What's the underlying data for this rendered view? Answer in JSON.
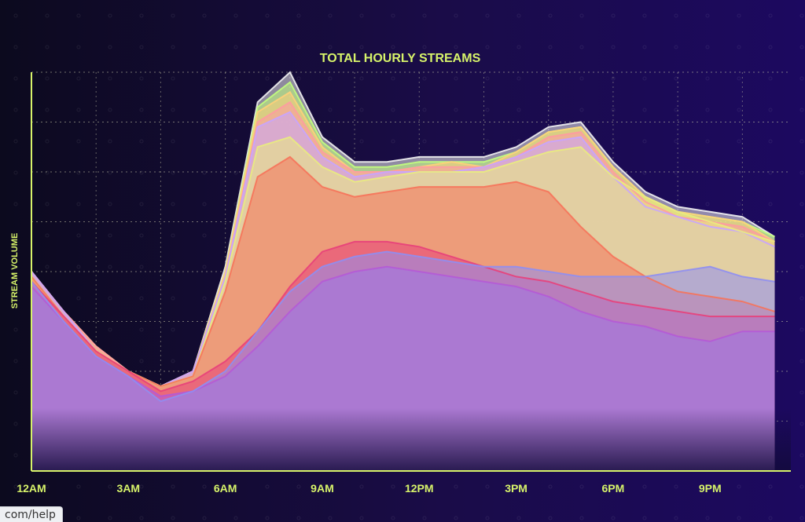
{
  "chart_data": {
    "type": "area",
    "title": "TOTAL HOURLY STREAMS",
    "xlabel": "",
    "ylabel": "STREAM VOLUME",
    "x": [
      0,
      1,
      2,
      3,
      4,
      5,
      6,
      7,
      8,
      9,
      10,
      11,
      12,
      13,
      14,
      15,
      16,
      17,
      18,
      19,
      20,
      21,
      22,
      23
    ],
    "x_tick_values": [
      0,
      3,
      6,
      9,
      12,
      15,
      18,
      21
    ],
    "x_tick_labels": [
      "12AM",
      "3AM",
      "6AM",
      "9AM",
      "12PM",
      "3PM",
      "6PM",
      "9PM"
    ],
    "ylim": [
      0,
      8
    ],
    "grid": true,
    "legend": "none",
    "series": [
      {
        "color": "#8f8ef2",
        "values": [
          3.8,
          3.0,
          2.3,
          1.9,
          1.4,
          1.6,
          2.0,
          2.8,
          3.6,
          4.1,
          4.3,
          4.4,
          4.3,
          4.2,
          4.1,
          4.1,
          4.0,
          3.9,
          3.9,
          3.9,
          4.0,
          4.1,
          3.9,
          3.8
        ]
      },
      {
        "color": "#b55ad6",
        "values": [
          3.7,
          3.0,
          2.3,
          1.9,
          1.5,
          1.6,
          1.9,
          2.5,
          3.2,
          3.8,
          4.0,
          4.1,
          4.0,
          3.9,
          3.8,
          3.7,
          3.5,
          3.2,
          3.0,
          2.9,
          2.7,
          2.6,
          2.8,
          2.8
        ]
      },
      {
        "color": "#e8407a",
        "values": [
          3.8,
          3.1,
          2.4,
          2.0,
          1.6,
          1.8,
          2.2,
          2.8,
          3.7,
          4.4,
          4.6,
          4.6,
          4.5,
          4.3,
          4.1,
          3.9,
          3.8,
          3.6,
          3.4,
          3.3,
          3.2,
          3.1,
          3.1,
          3.1
        ]
      },
      {
        "color": "#f6735a",
        "values": [
          3.9,
          3.1,
          2.4,
          2.0,
          1.7,
          1.9,
          3.6,
          5.9,
          6.3,
          5.7,
          5.5,
          5.6,
          5.7,
          5.7,
          5.7,
          5.8,
          5.6,
          4.9,
          4.3,
          3.9,
          3.6,
          3.5,
          3.4,
          3.2
        ]
      },
      {
        "color": "#e9ec7e",
        "values": [
          3.9,
          3.1,
          2.4,
          2.0,
          1.7,
          1.9,
          3.8,
          6.5,
          6.7,
          6.1,
          5.8,
          5.9,
          6.0,
          6.0,
          6.0,
          6.2,
          6.4,
          6.5,
          5.9,
          5.5,
          5.2,
          5.0,
          4.8,
          4.6
        ]
      },
      {
        "color": "#c8a4ff",
        "values": [
          4.0,
          3.2,
          2.4,
          2.0,
          1.7,
          2.0,
          3.9,
          6.9,
          7.2,
          6.3,
          5.9,
          6.0,
          6.0,
          6.0,
          6.1,
          6.3,
          6.6,
          6.7,
          5.9,
          5.3,
          5.1,
          4.9,
          4.8,
          4.5
        ]
      },
      {
        "color": "#ff9aa2",
        "values": [
          4.0,
          3.2,
          2.5,
          2.0,
          1.7,
          2.0,
          3.9,
          7.0,
          7.4,
          6.4,
          6.0,
          6.0,
          6.1,
          6.1,
          6.1,
          6.3,
          6.7,
          6.8,
          6.0,
          5.4,
          5.1,
          5.0,
          4.9,
          4.6
        ]
      },
      {
        "color": "#ffd07a",
        "values": [
          4.0,
          3.2,
          2.5,
          2.0,
          1.7,
          2.0,
          4.0,
          7.2,
          7.6,
          6.5,
          6.0,
          6.0,
          6.1,
          6.2,
          6.1,
          6.4,
          6.8,
          6.9,
          6.1,
          5.5,
          5.2,
          5.1,
          5.0,
          4.6
        ]
      },
      {
        "color": "#c3ff7d",
        "values": [
          4.0,
          3.2,
          2.5,
          2.0,
          1.7,
          2.0,
          4.0,
          7.3,
          7.8,
          6.6,
          6.1,
          6.1,
          6.2,
          6.2,
          6.2,
          6.4,
          6.8,
          6.9,
          6.1,
          5.5,
          5.2,
          5.1,
          5.0,
          4.7
        ]
      },
      {
        "color": "#f3f3f3",
        "values": [
          4.0,
          3.2,
          2.5,
          2.0,
          1.7,
          2.0,
          4.1,
          7.4,
          8.0,
          6.7,
          6.2,
          6.2,
          6.3,
          6.3,
          6.3,
          6.5,
          6.9,
          7.0,
          6.2,
          5.6,
          5.3,
          5.2,
          5.1,
          4.7
        ]
      }
    ]
  },
  "status_bar": {
    "text": "com/help"
  }
}
